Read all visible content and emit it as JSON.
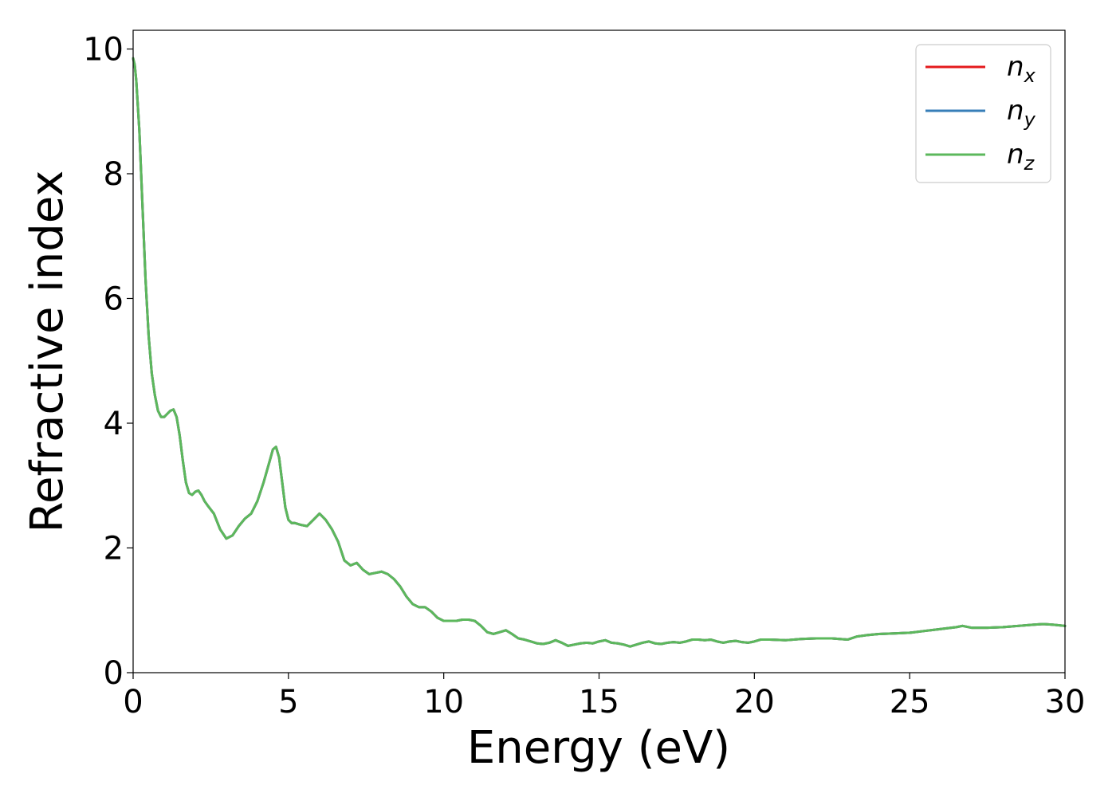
{
  "chart_data": {
    "type": "line",
    "title": "",
    "xlabel": "Energy (eV)",
    "ylabel": "Refractive index",
    "xlim": [
      0,
      30
    ],
    "ylim": [
      0,
      10.3
    ],
    "xticks": [
      0,
      5,
      10,
      15,
      20,
      25,
      30
    ],
    "yticks": [
      0,
      2,
      4,
      6,
      8,
      10
    ],
    "xtick_labels": [
      "0",
      "5",
      "10",
      "15",
      "20",
      "25",
      "30"
    ],
    "ytick_labels": [
      "0",
      "2",
      "4",
      "6",
      "8",
      "10"
    ],
    "grid": false,
    "legend_position": "top-right",
    "x": [
      0.0,
      0.05,
      0.1,
      0.2,
      0.3,
      0.4,
      0.5,
      0.6,
      0.7,
      0.8,
      0.9,
      1.0,
      1.1,
      1.2,
      1.3,
      1.4,
      1.5,
      1.6,
      1.7,
      1.8,
      1.9,
      2.0,
      2.1,
      2.2,
      2.3,
      2.4,
      2.6,
      2.8,
      3.0,
      3.2,
      3.4,
      3.6,
      3.8,
      4.0,
      4.2,
      4.4,
      4.5,
      4.6,
      4.7,
      4.8,
      4.9,
      5.0,
      5.1,
      5.2,
      5.4,
      5.6,
      5.8,
      6.0,
      6.1,
      6.2,
      6.4,
      6.6,
      6.8,
      7.0,
      7.2,
      7.4,
      7.6,
      7.8,
      8.0,
      8.2,
      8.4,
      8.6,
      8.8,
      9.0,
      9.2,
      9.4,
      9.6,
      9.8,
      10.0,
      10.2,
      10.4,
      10.6,
      10.8,
      11.0,
      11.2,
      11.4,
      11.6,
      11.8,
      12.0,
      12.2,
      12.4,
      12.6,
      12.8,
      13.0,
      13.2,
      13.4,
      13.6,
      13.8,
      14.0,
      14.2,
      14.4,
      14.6,
      14.8,
      15.0,
      15.2,
      15.4,
      15.6,
      15.8,
      16.0,
      16.2,
      16.4,
      16.6,
      16.8,
      17.0,
      17.2,
      17.4,
      17.6,
      17.8,
      18.0,
      18.2,
      18.4,
      18.6,
      18.8,
      19.0,
      19.2,
      19.4,
      19.6,
      19.8,
      20.0,
      20.2,
      20.5,
      21.0,
      21.5,
      22.0,
      22.5,
      23.0,
      23.3,
      23.6,
      24.0,
      24.5,
      25.0,
      25.5,
      26.0,
      26.5,
      26.7,
      27.0,
      27.5,
      28.0,
      28.5,
      29.0,
      29.3,
      29.6,
      30.0
    ],
    "series": [
      {
        "name": "n_x",
        "color": "#e41a1c",
        "y": [
          9.85,
          9.75,
          9.5,
          8.7,
          7.5,
          6.3,
          5.4,
          4.8,
          4.45,
          4.2,
          4.1,
          4.1,
          4.15,
          4.2,
          4.22,
          4.1,
          3.8,
          3.4,
          3.05,
          2.88,
          2.85,
          2.9,
          2.92,
          2.85,
          2.75,
          2.68,
          2.55,
          2.3,
          2.15,
          2.2,
          2.35,
          2.47,
          2.55,
          2.75,
          3.05,
          3.4,
          3.58,
          3.62,
          3.45,
          3.05,
          2.65,
          2.45,
          2.4,
          2.4,
          2.37,
          2.35,
          2.45,
          2.55,
          2.5,
          2.45,
          2.3,
          2.1,
          1.8,
          1.72,
          1.76,
          1.65,
          1.58,
          1.6,
          1.62,
          1.58,
          1.5,
          1.38,
          1.22,
          1.1,
          1.05,
          1.05,
          0.98,
          0.88,
          0.83,
          0.83,
          0.83,
          0.85,
          0.85,
          0.83,
          0.75,
          0.65,
          0.62,
          0.65,
          0.68,
          0.62,
          0.55,
          0.53,
          0.5,
          0.47,
          0.46,
          0.48,
          0.52,
          0.48,
          0.43,
          0.45,
          0.47,
          0.48,
          0.47,
          0.5,
          0.52,
          0.48,
          0.47,
          0.45,
          0.42,
          0.45,
          0.48,
          0.5,
          0.47,
          0.46,
          0.48,
          0.49,
          0.48,
          0.5,
          0.53,
          0.53,
          0.52,
          0.53,
          0.5,
          0.48,
          0.5,
          0.51,
          0.49,
          0.48,
          0.5,
          0.53,
          0.53,
          0.52,
          0.54,
          0.55,
          0.55,
          0.53,
          0.58,
          0.6,
          0.62,
          0.63,
          0.64,
          0.67,
          0.7,
          0.73,
          0.75,
          0.72,
          0.72,
          0.73,
          0.75,
          0.77,
          0.78,
          0.77,
          0.75
        ]
      },
      {
        "name": "n_y",
        "color": "#377eb8",
        "y": [
          9.85,
          9.75,
          9.5,
          8.7,
          7.5,
          6.3,
          5.4,
          4.8,
          4.45,
          4.2,
          4.1,
          4.1,
          4.15,
          4.2,
          4.22,
          4.1,
          3.8,
          3.4,
          3.05,
          2.88,
          2.85,
          2.9,
          2.92,
          2.85,
          2.75,
          2.68,
          2.55,
          2.3,
          2.15,
          2.2,
          2.35,
          2.47,
          2.55,
          2.75,
          3.05,
          3.4,
          3.58,
          3.62,
          3.45,
          3.05,
          2.65,
          2.45,
          2.4,
          2.4,
          2.37,
          2.35,
          2.45,
          2.55,
          2.5,
          2.45,
          2.3,
          2.1,
          1.8,
          1.72,
          1.76,
          1.65,
          1.58,
          1.6,
          1.62,
          1.58,
          1.5,
          1.38,
          1.22,
          1.1,
          1.05,
          1.05,
          0.98,
          0.88,
          0.83,
          0.83,
          0.83,
          0.85,
          0.85,
          0.83,
          0.75,
          0.65,
          0.62,
          0.65,
          0.68,
          0.62,
          0.55,
          0.53,
          0.5,
          0.47,
          0.46,
          0.48,
          0.52,
          0.48,
          0.43,
          0.45,
          0.47,
          0.48,
          0.47,
          0.5,
          0.52,
          0.48,
          0.47,
          0.45,
          0.42,
          0.45,
          0.48,
          0.5,
          0.47,
          0.46,
          0.48,
          0.49,
          0.48,
          0.5,
          0.53,
          0.53,
          0.52,
          0.53,
          0.5,
          0.48,
          0.5,
          0.51,
          0.49,
          0.48,
          0.5,
          0.53,
          0.53,
          0.52,
          0.54,
          0.55,
          0.55,
          0.53,
          0.58,
          0.6,
          0.62,
          0.63,
          0.64,
          0.67,
          0.7,
          0.73,
          0.75,
          0.72,
          0.72,
          0.73,
          0.75,
          0.77,
          0.78,
          0.77,
          0.75
        ]
      },
      {
        "name": "n_z",
        "color": "#5cb85c",
        "y": [
          9.85,
          9.75,
          9.5,
          8.7,
          7.5,
          6.3,
          5.4,
          4.8,
          4.45,
          4.2,
          4.1,
          4.1,
          4.15,
          4.2,
          4.22,
          4.1,
          3.8,
          3.4,
          3.05,
          2.88,
          2.85,
          2.9,
          2.92,
          2.85,
          2.75,
          2.68,
          2.55,
          2.3,
          2.15,
          2.2,
          2.35,
          2.47,
          2.55,
          2.75,
          3.05,
          3.4,
          3.58,
          3.62,
          3.45,
          3.05,
          2.65,
          2.45,
          2.4,
          2.4,
          2.37,
          2.35,
          2.45,
          2.55,
          2.5,
          2.45,
          2.3,
          2.1,
          1.8,
          1.72,
          1.76,
          1.65,
          1.58,
          1.6,
          1.62,
          1.58,
          1.5,
          1.38,
          1.22,
          1.1,
          1.05,
          1.05,
          0.98,
          0.88,
          0.83,
          0.83,
          0.83,
          0.85,
          0.85,
          0.83,
          0.75,
          0.65,
          0.62,
          0.65,
          0.68,
          0.62,
          0.55,
          0.53,
          0.5,
          0.47,
          0.46,
          0.48,
          0.52,
          0.48,
          0.43,
          0.45,
          0.47,
          0.48,
          0.47,
          0.5,
          0.52,
          0.48,
          0.47,
          0.45,
          0.42,
          0.45,
          0.48,
          0.5,
          0.47,
          0.46,
          0.48,
          0.49,
          0.48,
          0.5,
          0.53,
          0.53,
          0.52,
          0.53,
          0.5,
          0.48,
          0.5,
          0.51,
          0.49,
          0.48,
          0.5,
          0.53,
          0.53,
          0.52,
          0.54,
          0.55,
          0.55,
          0.53,
          0.58,
          0.6,
          0.62,
          0.63,
          0.64,
          0.67,
          0.7,
          0.73,
          0.75,
          0.72,
          0.72,
          0.73,
          0.75,
          0.77,
          0.78,
          0.77,
          0.75
        ]
      }
    ],
    "legend": [
      {
        "base": "n",
        "sub": "x",
        "color": "#e41a1c"
      },
      {
        "base": "n",
        "sub": "y",
        "color": "#377eb8"
      },
      {
        "base": "n",
        "sub": "z",
        "color": "#5cb85c"
      }
    ]
  }
}
